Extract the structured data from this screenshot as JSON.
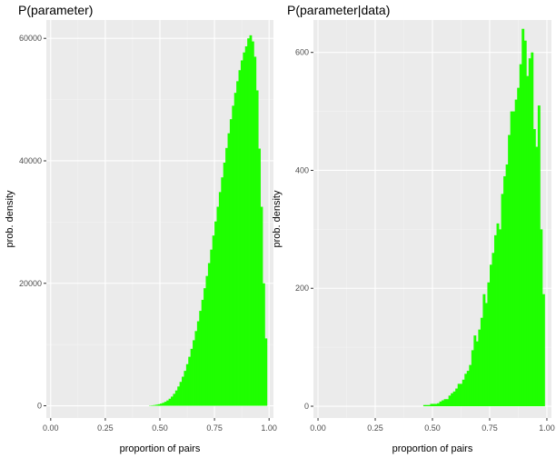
{
  "chart_data": [
    {
      "type": "bar",
      "title": "P(parameter)",
      "xlabel": "proportion of pairs",
      "ylabel": "prob. density",
      "xlim": [
        -0.02,
        1.02
      ],
      "ylim": [
        -2000,
        63000
      ],
      "x_ticks": [
        {
          "value": 0,
          "label": "0.00"
        },
        {
          "value": 0.25,
          "label": "0.25"
        },
        {
          "value": 0.5,
          "label": "0.50"
        },
        {
          "value": 0.75,
          "label": "0.75"
        },
        {
          "value": 1,
          "label": "1.00"
        }
      ],
      "y_ticks": [
        {
          "value": 0,
          "label": "0"
        },
        {
          "value": 20000,
          "label": "20000"
        },
        {
          "value": 40000,
          "label": "40000"
        },
        {
          "value": 60000,
          "label": "60000"
        }
      ],
      "bin_width": 0.01,
      "bin_start": 0.45,
      "values": [
        50,
        80,
        120,
        180,
        250,
        350,
        480,
        650,
        870,
        1150,
        1500,
        1950,
        2500,
        3150,
        3900,
        4750,
        5700,
        6800,
        8000,
        9300,
        10700,
        12200,
        13800,
        15500,
        17300,
        19200,
        21200,
        23300,
        25500,
        27800,
        30100,
        32500,
        34900,
        37300,
        39700,
        42100,
        44500,
        46800,
        49000,
        51100,
        53000,
        54800,
        56400,
        57700,
        58700,
        60000,
        60500,
        59500,
        57000,
        51500,
        42000,
        32500,
        20000,
        11000
      ]
    },
    {
      "type": "bar",
      "title": "P(parameter|data)",
      "xlabel": "proportion of pairs",
      "ylabel": "prob. density",
      "xlim": [
        -0.02,
        1.02
      ],
      "ylim": [
        -20,
        655
      ],
      "x_ticks": [
        {
          "value": 0,
          "label": "0.00"
        },
        {
          "value": 0.25,
          "label": "0.25"
        },
        {
          "value": 0.5,
          "label": "0.50"
        },
        {
          "value": 0.75,
          "label": "0.75"
        },
        {
          "value": 1,
          "label": "1.00"
        }
      ],
      "y_ticks": [
        {
          "value": 0,
          "label": "0"
        },
        {
          "value": 200,
          "label": "200"
        },
        {
          "value": 400,
          "label": "400"
        },
        {
          "value": 600,
          "label": "600"
        }
      ],
      "bin_width": 0.01,
      "bin_start": 0.45,
      "values": [
        0,
        2,
        2,
        2,
        4,
        4,
        4,
        5,
        8,
        10,
        12,
        12,
        18,
        22,
        25,
        30,
        38,
        38,
        45,
        55,
        60,
        70,
        95,
        120,
        110,
        130,
        150,
        190,
        175,
        210,
        240,
        260,
        290,
        310,
        300,
        360,
        390,
        410,
        460,
        500,
        500,
        520,
        540,
        580,
        640,
        620,
        560,
        590,
        600,
        470,
        440,
        510,
        300,
        190
      ]
    }
  ]
}
